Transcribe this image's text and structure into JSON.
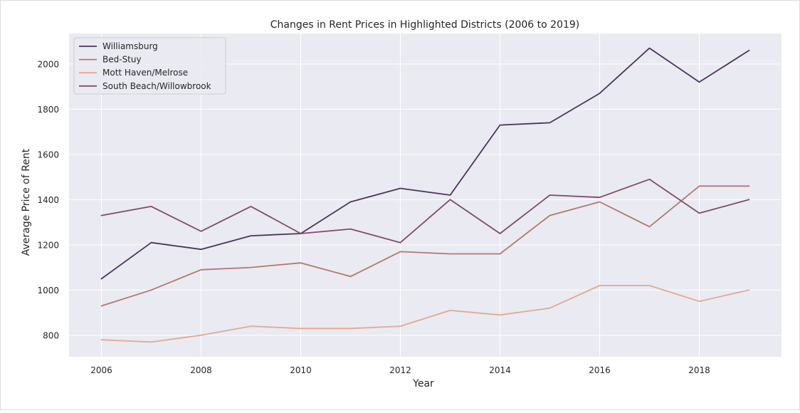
{
  "chart_data": {
    "type": "line",
    "title": "Changes in Rent Prices in Highlighted Districts (2006 to 2019)",
    "xlabel": "Year",
    "ylabel": "Average Price of Rent",
    "x": [
      2006,
      2007,
      2008,
      2009,
      2010,
      2011,
      2012,
      2013,
      2014,
      2015,
      2016,
      2017,
      2018,
      2019
    ],
    "xlim": [
      2005.35,
      2019.65
    ],
    "ylim": [
      705,
      2135
    ],
    "x_ticks": [
      "2006",
      "2008",
      "2010",
      "2012",
      "2014",
      "2016",
      "2018"
    ],
    "y_ticks": [
      "800",
      "1000",
      "1200",
      "1400",
      "1600",
      "1800",
      "2000"
    ],
    "grid": true,
    "legend_position": "upper-left",
    "background_color": "#eaeaf2",
    "series": [
      {
        "name": "Williamsburg",
        "color": "#4a3659",
        "values": [
          1050,
          1210,
          1180,
          1240,
          1250,
          1390,
          1450,
          1420,
          1730,
          1740,
          1870,
          2070,
          1920,
          2060
        ]
      },
      {
        "name": "Bed-Stuy",
        "color": "#b5776f",
        "values": [
          930,
          1000,
          1090,
          1100,
          1120,
          1060,
          1170,
          1160,
          1160,
          1330,
          1390,
          1280,
          1460,
          1460
        ]
      },
      {
        "name": "Mott Haven/Melrose",
        "color": "#dfab8e",
        "values": [
          780,
          770,
          800,
          840,
          830,
          830,
          840,
          910,
          890,
          920,
          1020,
          1020,
          950,
          1000
        ]
      },
      {
        "name": "South Beach/Willowbrook",
        "color": "#7f4d66",
        "values": [
          1330,
          1370,
          1260,
          1370,
          1250,
          1270,
          1210,
          1400,
          1250,
          1420,
          1410,
          1490,
          1340,
          1400
        ]
      }
    ]
  }
}
